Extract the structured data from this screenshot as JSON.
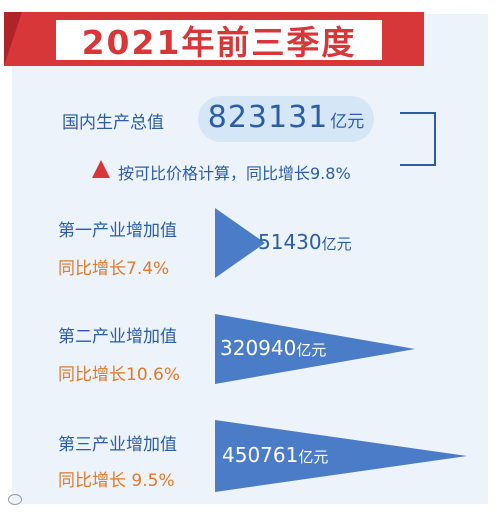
{
  "title": "2021年前三季度",
  "gdp": {
    "label": "国内生产总值",
    "value": "823131",
    "unit": "亿元",
    "growth_text": "按可比价格计算，同比增长9.8%"
  },
  "industries": [
    {
      "name": "第一产业增加值",
      "growth": "同比增长7.4%",
      "value": "51430",
      "unit": "亿元"
    },
    {
      "name": "第二产业增加值",
      "growth": "同比增长10.6%",
      "value": "320940",
      "unit": "亿元"
    },
    {
      "name": "第三产业增加值",
      "growth": "同比增长 9.5%",
      "value": "450761",
      "unit": "亿元"
    }
  ],
  "colors": {
    "accent_red": "#d8373a",
    "text_blue": "#2a5da6",
    "growth_orange": "#e07a2a",
    "wedge_blue": "#4a7cc7",
    "background": "#edf3fa"
  },
  "icons": {
    "trend": "red-up-triangle-icon",
    "watermark": "weibo-icon"
  }
}
